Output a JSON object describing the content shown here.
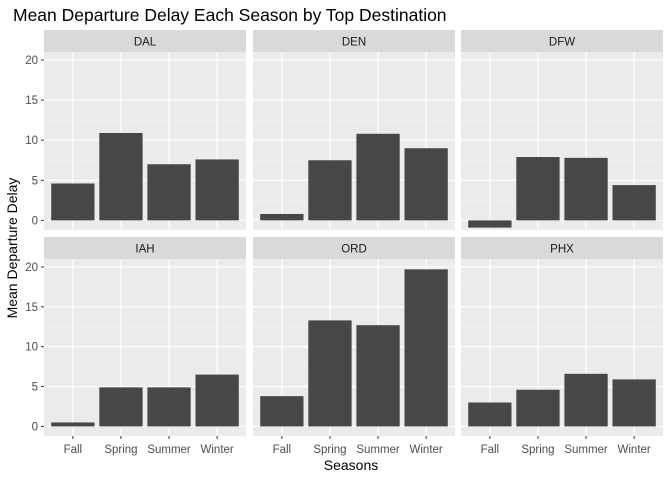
{
  "chart_data": {
    "type": "bar",
    "title": "Mean Departure Delay Each Season by Top Destination",
    "xlabel": "Seasons",
    "ylabel": "Mean Departure Delay",
    "categories": [
      "Fall",
      "Spring",
      "Summer",
      "Winter"
    ],
    "ylim": [
      -1.2,
      21
    ],
    "yticks": [
      0,
      5,
      10,
      15,
      20
    ],
    "grid": true,
    "colors": {
      "bar": "#474747",
      "panel": "#ebebeb",
      "strip": "#d9d9d9",
      "grid": "#ffffff"
    },
    "facets": [
      {
        "name": "DAL",
        "values": [
          4.6,
          10.9,
          7.0,
          7.6
        ]
      },
      {
        "name": "DEN",
        "values": [
          0.8,
          7.5,
          10.8,
          9.0
        ]
      },
      {
        "name": "DFW",
        "values": [
          -0.9,
          7.9,
          7.8,
          4.4
        ]
      },
      {
        "name": "IAH",
        "values": [
          0.5,
          4.9,
          4.9,
          6.5
        ]
      },
      {
        "name": "ORD",
        "values": [
          3.8,
          13.3,
          12.7,
          19.7
        ]
      },
      {
        "name": "PHX",
        "values": [
          3.0,
          4.6,
          6.6,
          5.9
        ]
      }
    ]
  }
}
